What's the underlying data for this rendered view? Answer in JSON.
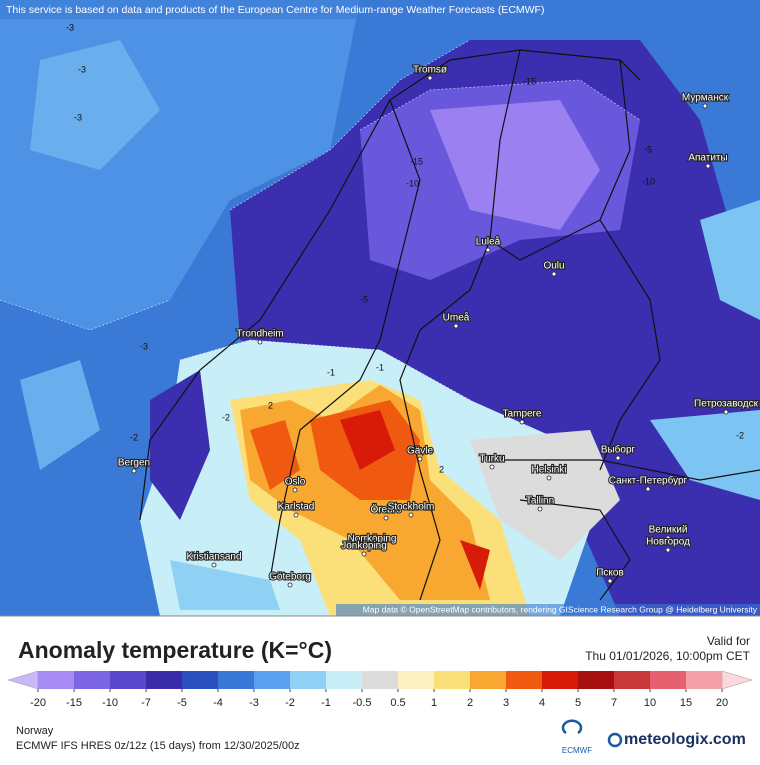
{
  "header": {
    "notice": "This service is based on data and products of the European Centre for Medium-range Weather Forecasts (ECMWF)",
    "attribution": "Map data © OpenStreetMap contributors, rendering GIScience Research Group @ Heidelberg University"
  },
  "cities": [
    "Tromsø",
    "Мурманск",
    "Апатиты",
    "Luleå",
    "Oulu",
    "Umeå",
    "Trondheim",
    "Tampere",
    "Петрозаводск",
    "Bergen",
    "Gävle",
    "Turku",
    "Helsinki",
    "Выборг",
    "Oslo",
    "Санкт-Петербург",
    "Karlstad",
    "Örebro",
    "Stockholm",
    "Tallinn",
    "Великий",
    "Новгород",
    "Norrköping",
    "Kristiansand",
    "Jönköping",
    "Göteborg",
    "Псков"
  ],
  "contour_labels": [
    -3,
    -3,
    -3,
    -3,
    -15,
    -15,
    -10,
    -10,
    -5,
    -2,
    -2,
    -1,
    -1,
    2,
    2,
    -2,
    -5
  ],
  "panel": {
    "title": "Anomaly temperature (K=°C)",
    "valid_label": "Valid for",
    "valid_time": "Thu 01/01/2026, 10:00pm CET",
    "region": "Norway",
    "model": "ECMWF IFS HRES 0z/12z (15 days) from  12/30/2025/00z",
    "ecmwf": "ECMWF",
    "brand": "meteologix.com"
  },
  "colorbar": {
    "ticks": [
      -20,
      -15,
      -10,
      -7,
      -5,
      -4,
      -3,
      -2,
      -1,
      -0.5,
      0.5,
      1,
      2,
      3,
      4,
      5,
      7,
      10,
      15,
      20
    ],
    "colors": [
      "#a88cf5",
      "#7c66e6",
      "#5a48cf",
      "#3a2ca8",
      "#2d50c0",
      "#3a78d8",
      "#5aa0ee",
      "#8fd0f5",
      "#c8eef8",
      "#dcdcdc",
      "#fbf0c0",
      "#fbe07a",
      "#f8a830",
      "#f05a10",
      "#d81a08",
      "#a81010",
      "#c83838",
      "#e66070",
      "#f4a0a8"
    ],
    "low_color": "#c8b8f8",
    "high_color": "#fcd8dc"
  }
}
